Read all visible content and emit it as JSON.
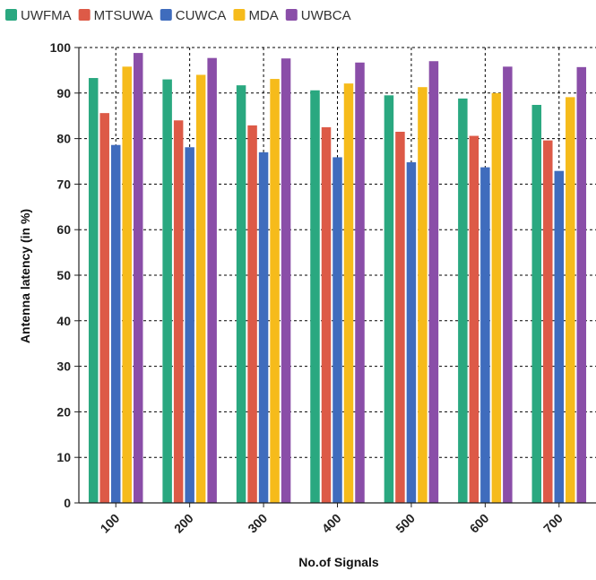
{
  "chart_data": {
    "type": "bar",
    "xlabel": "No.of Signals",
    "ylabel": "Antenna latency (in %)",
    "categories": [
      "100",
      "200",
      "300",
      "400",
      "500",
      "600",
      "700"
    ],
    "ylim": [
      0,
      100
    ],
    "yticks": [
      "0",
      "10",
      "20",
      "30",
      "40",
      "50",
      "60",
      "70",
      "80",
      "90",
      "100"
    ],
    "grid": true,
    "legend_position": "top-left",
    "series": [
      {
        "name": "UWFMA",
        "color": "#2aa880",
        "values": [
          93.3,
          93.0,
          91.7,
          90.6,
          89.5,
          88.8,
          87.4
        ]
      },
      {
        "name": "MTSUWA",
        "color": "#dd5a47",
        "values": [
          85.6,
          84.0,
          82.9,
          82.5,
          81.5,
          80.6,
          79.6
        ]
      },
      {
        "name": "CUWCA",
        "color": "#3f6cbd",
        "values": [
          78.6,
          78.1,
          77.0,
          75.9,
          74.8,
          73.7,
          72.9
        ]
      },
      {
        "name": "MDA",
        "color": "#f6bb1b",
        "values": [
          95.8,
          94.0,
          93.1,
          92.1,
          91.3,
          90.0,
          89.1
        ]
      },
      {
        "name": "UWBCA",
        "color": "#8a4ea8",
        "values": [
          98.8,
          97.7,
          97.6,
          96.7,
          97.0,
          95.8,
          95.7
        ]
      }
    ]
  }
}
